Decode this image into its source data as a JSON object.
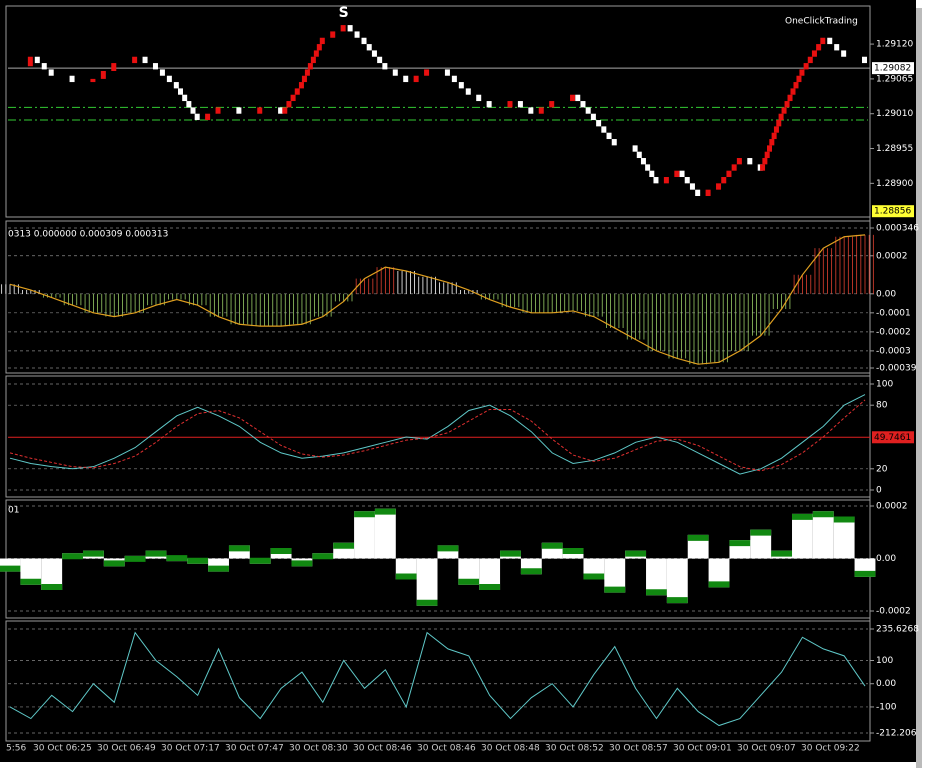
{
  "chart_data": [
    {
      "type": "renko",
      "brand": "OneClickTrading",
      "signal_marker": "S",
      "values": [
        1.29085,
        1.291,
        1.2907,
        1.2906,
        1.29065,
        1.2909,
        1.291,
        1.2908,
        1.2905,
        1.29,
        1.2902,
        1.2901,
        1.2902,
        1.2901,
        1.2906,
        1.2913,
        1.2915,
        1.2912,
        1.2908,
        1.2906,
        1.2908,
        1.2907,
        1.2904,
        1.2902,
        1.2903,
        1.2901,
        1.2903,
        1.2904,
        1.29,
        1.2896,
        1.2895,
        1.289,
        1.2892,
        1.2888,
        1.289,
        1.2894,
        1.2892,
        1.2901,
        1.2908,
        1.2913,
        1.291,
        1.2909
      ],
      "brick_size": 0.0001,
      "up_color": "#e81010",
      "down_color": "#ffffff",
      "ylim": [
        1.2885,
        1.29177
      ],
      "yticks": [
        {
          "value": 1.2912,
          "label": "1.29120"
        },
        1.29065,
        {
          "value": 1.2901,
          "label": "1.29010"
        },
        1.28955,
        {
          "value": 1.289,
          "label": "1.28900"
        }
      ],
      "levels": [
        1.2902,
        1.29
      ],
      "level_color": "#33cc33",
      "current_price": 1.29082,
      "last_marker": 1.28856
    },
    {
      "type": "bar",
      "title": "0313 0.000000 0.000309 0.000313",
      "values": [
        5e-05,
        2e-05,
        -2e-05,
        -6e-05,
        -0.0001,
        -0.00012,
        -0.0001,
        -6e-05,
        -3e-05,
        -6e-05,
        -0.00012,
        -0.00016,
        -0.00017,
        -0.00017,
        -0.00016,
        -0.00012,
        -4e-05,
        8e-05,
        0.00014,
        0.00012,
        9e-05,
        6e-05,
        2e-05,
        -3e-05,
        -7e-05,
        -0.0001,
        -0.0001,
        -9e-05,
        -0.00012,
        -0.00018,
        -0.00024,
        -0.0003,
        -0.00034,
        -0.00037,
        -0.00036,
        -0.0003,
        -0.00022,
        -8e-05,
        0.0001,
        0.00024,
        0.0003,
        0.00031
      ],
      "ylim": [
        -0.00039,
        0.000346
      ],
      "yticks": [
        0.000346,
        0.0002,
        {
          "value": 0,
          "label": "0.00"
        },
        -0.0001,
        -0.0002,
        -0.0003,
        -0.00039
      ],
      "line_color": "#e0a020"
    },
    {
      "type": "line",
      "series": [
        {
          "color": "#5fc8c8",
          "values": [
            30,
            25,
            22,
            20,
            22,
            30,
            40,
            55,
            70,
            78,
            70,
            60,
            45,
            35,
            30,
            32,
            35,
            40,
            45,
            50,
            48,
            60,
            75,
            80,
            70,
            55,
            35,
            25,
            28,
            35,
            45,
            50,
            45,
            35,
            25,
            15,
            20,
            30,
            45,
            60,
            80,
            90
          ]
        },
        {
          "color": "#e03030",
          "values": [
            35,
            30,
            26,
            22,
            21,
            25,
            32,
            45,
            60,
            72,
            75,
            68,
            55,
            42,
            34,
            31,
            33,
            37,
            42,
            47,
            49,
            54,
            65,
            76,
            76,
            65,
            48,
            33,
            27,
            30,
            38,
            46,
            48,
            42,
            32,
            22,
            18,
            24,
            35,
            50,
            68,
            85
          ]
        }
      ],
      "ylim": [
        0,
        100
      ],
      "yticks": [
        100,
        80,
        20,
        0
      ],
      "current_level": 49.7461
    },
    {
      "type": "bar",
      "title": "01",
      "values": [
        -5e-05,
        -0.0001,
        -0.00012,
        2e-05,
        3e-05,
        -3e-05,
        1e-05,
        3e-05,
        -1e-05,
        -2e-05,
        -5e-05,
        5e-05,
        -2e-05,
        4e-05,
        -3e-05,
        2e-05,
        6e-05,
        0.00018,
        0.00019,
        -8e-05,
        -0.00018,
        5e-05,
        -0.0001,
        -0.00012,
        3e-05,
        -6e-05,
        6e-05,
        4e-05,
        -8e-05,
        -0.00013,
        3e-05,
        -0.00014,
        -0.00017,
        9e-05,
        -0.00011,
        7e-05,
        0.00011,
        3e-05,
        0.00017,
        0.00018,
        0.00016,
        -7e-05
      ],
      "ylim": [
        -0.0002,
        0.0002
      ],
      "yticks": [
        0.0002,
        {
          "value": 0,
          "label": "0.00"
        },
        -0.0002
      ],
      "color": "#ffffff",
      "cap_color": "#118811"
    },
    {
      "type": "line",
      "series": [
        {
          "color": "#5fc8c8",
          "values": [
            -100,
            -150,
            -50,
            -120,
            0,
            -80,
            220,
            100,
            30,
            -50,
            150,
            -60,
            -150,
            -20,
            50,
            -80,
            100,
            -20,
            60,
            -100,
            220,
            150,
            120,
            -50,
            -150,
            -60,
            0,
            -100,
            40,
            160,
            -20,
            -150,
            -20,
            -120,
            -180,
            -150,
            -50,
            50,
            200,
            150,
            120,
            -10
          ]
        }
      ],
      "ylim": [
        -212.206,
        235.6268
      ],
      "yticks": [
        235.6268,
        100,
        {
          "value": 0,
          "label": "0.00"
        },
        -100,
        -212.206
      ]
    }
  ],
  "time_axis": {
    "labels": [
      "5:56",
      "30 Oct 06:25",
      "30 Oct 06:49",
      "30 Oct 07:17",
      "30 Oct 07:47",
      "30 Oct 08:30",
      "30 Oct 08:46",
      "30 Oct 08:46",
      "30 Oct 08:48",
      "30 Oct 08:52",
      "30 Oct 08:57",
      "30 Oct 09:01",
      "30 Oct 09:07",
      "30 Oct 09:22"
    ]
  }
}
